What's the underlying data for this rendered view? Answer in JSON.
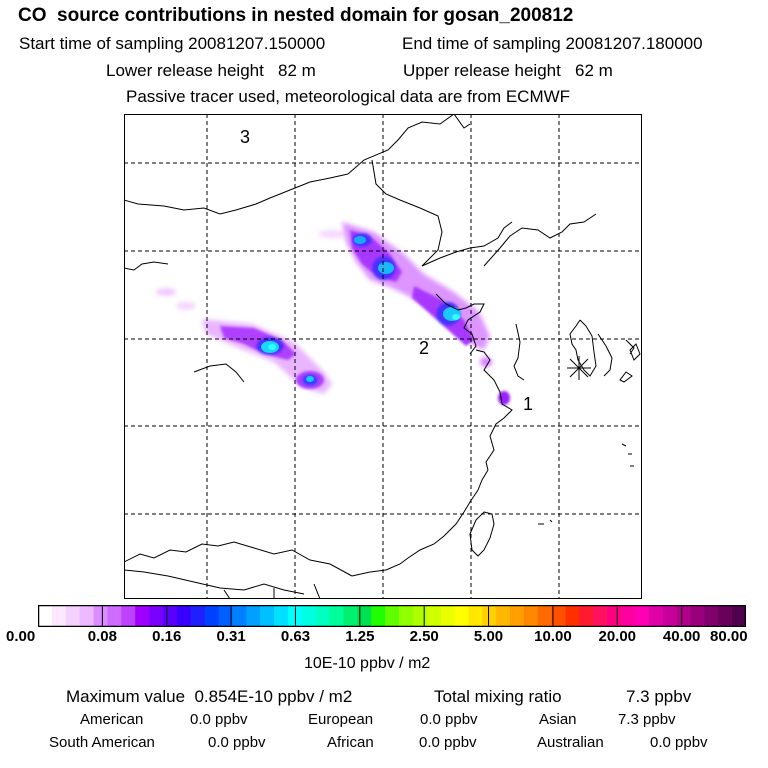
{
  "title": "CO  source contributions in nested domain for gosan_200812",
  "sampling": {
    "start_label": "Start time of sampling 20081207.150000",
    "end_label": "End time of sampling 20081207.180000"
  },
  "release": {
    "lower_label": "Lower release height   82 m",
    "upper_label": "Upper release height   62 m"
  },
  "tracer_note": "Passive tracer used, meteorological data are from ECMWF",
  "map": {
    "region_labels": [
      "1",
      "2",
      "3"
    ],
    "receptor_marker": "gosan-receptor-star-icon"
  },
  "colorbar": {
    "tick_labels": [
      "0.00",
      "0.08",
      "0.16",
      "0.31",
      "0.63",
      "1.25",
      "2.50",
      "5.00",
      "10.00",
      "20.00",
      "40.00",
      "80.00"
    ],
    "colors": [
      "#ffffff",
      "#fbe8ff",
      "#f4d0ff",
      "#edb9ff",
      "#d98dff",
      "#cf6bff",
      "#bf40ff",
      "#a000ff",
      "#7a00ff",
      "#5a00ff",
      "#3a00ff",
      "#2020ff",
      "#0040ff",
      "#0060ff",
      "#0080ff",
      "#00a0ff",
      "#00c0ff",
      "#00e0ff",
      "#00ffff",
      "#00ffe0",
      "#00ffc0",
      "#00ff9a",
      "#00f070",
      "#00e050",
      "#20ff00",
      "#60ff00",
      "#90ff00",
      "#b0ff00",
      "#d0ff00",
      "#eaff00",
      "#ffff00",
      "#ffe800",
      "#ffd000",
      "#ffb800",
      "#ffa000",
      "#ff8800",
      "#ff6a00",
      "#ff5000",
      "#ff3000",
      "#ff1a30",
      "#ff1060",
      "#ff0080",
      "#ff00a0",
      "#ff00b4",
      "#e000a8",
      "#c8009a",
      "#b0008c",
      "#98007c",
      "#80006c",
      "#68005c",
      "#50004c"
    ],
    "units": "10E-10 ppbv / m2"
  },
  "summary": {
    "max_label": "Maximum value  0.854E-10 ppbv / m2",
    "total_label": "Total mixing ratio",
    "total_value": "7.3 ppbv",
    "regions": [
      {
        "name": "American",
        "value": "0.0 ppbv"
      },
      {
        "name": "European",
        "value": "0.0 ppbv"
      },
      {
        "name": "Asian",
        "value": "7.3 ppbv"
      },
      {
        "name": "South American",
        "value": "0.0 ppbv"
      },
      {
        "name": "African",
        "value": "0.0 ppbv"
      },
      {
        "name": "Australian",
        "value": "0.0 ppbv"
      }
    ]
  }
}
